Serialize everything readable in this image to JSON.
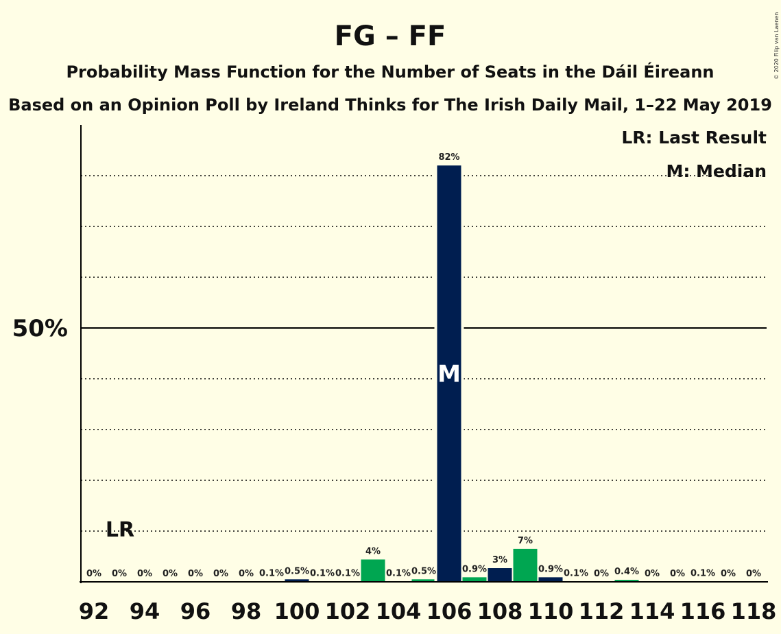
{
  "title": "FG – FF",
  "subtitle1": "Probability Mass Function for the Number of Seats in the Dáil Éireann",
  "subtitle2": "Based on an Opinion Poll by Ireland Thinks for The Irish Daily Mail, 1–22 May 2019",
  "copyright": "© 2020 Filip van Laenen",
  "legend": {
    "lr": "LR: Last Result",
    "median": "M: Median"
  },
  "colors": {
    "background": "#FFFEE6",
    "navy": "#001E50",
    "green": "#00A651"
  },
  "chart_data": {
    "type": "bar",
    "x": [
      92,
      93,
      94,
      95,
      96,
      97,
      98,
      99,
      100,
      101,
      102,
      103,
      104,
      105,
      106,
      107,
      108,
      109,
      110,
      111,
      112,
      113,
      114,
      115,
      116,
      117,
      118
    ],
    "values": [
      0,
      0,
      0,
      0,
      0,
      0,
      0,
      0.1,
      0.5,
      0.1,
      0.1,
      4.4,
      0.1,
      0.5,
      82,
      0.9,
      2.7,
      6.5,
      0.9,
      0.1,
      0,
      0.4,
      0,
      0,
      0.1,
      0,
      0
    ],
    "labels": [
      "0%",
      "0%",
      "0%",
      "0%",
      "0%",
      "0%",
      "0%",
      "0.1%",
      "0.5%",
      "0.1%",
      "0.1%",
      "4%",
      "0.1%",
      "0.5%",
      "82%",
      "0.9%",
      "3%",
      "7%",
      "0.9%",
      "0.1%",
      "0%",
      "0.4%",
      "0%",
      "0%",
      "0.1%",
      "0%",
      "0%"
    ],
    "bar_colors": [
      "navy",
      "green",
      "navy",
      "green",
      "navy",
      "green",
      "navy",
      "green",
      "navy",
      "green",
      "navy",
      "green",
      "navy",
      "green",
      "navy",
      "green",
      "navy",
      "green",
      "navy",
      "green",
      "navy",
      "green",
      "navy",
      "green",
      "navy",
      "green",
      "navy"
    ],
    "xticks": [
      "92",
      "94",
      "96",
      "98",
      "100",
      "102",
      "104",
      "106",
      "108",
      "110",
      "112",
      "114",
      "116",
      "118"
    ],
    "ylim": [
      0,
      90
    ],
    "y_gridlines": [
      10,
      20,
      30,
      40,
      50,
      60,
      70,
      80
    ],
    "y_major": 50,
    "y_major_label": "50%",
    "last_result": 93,
    "last_result_label": "LR",
    "median": 106,
    "median_label": "M"
  }
}
